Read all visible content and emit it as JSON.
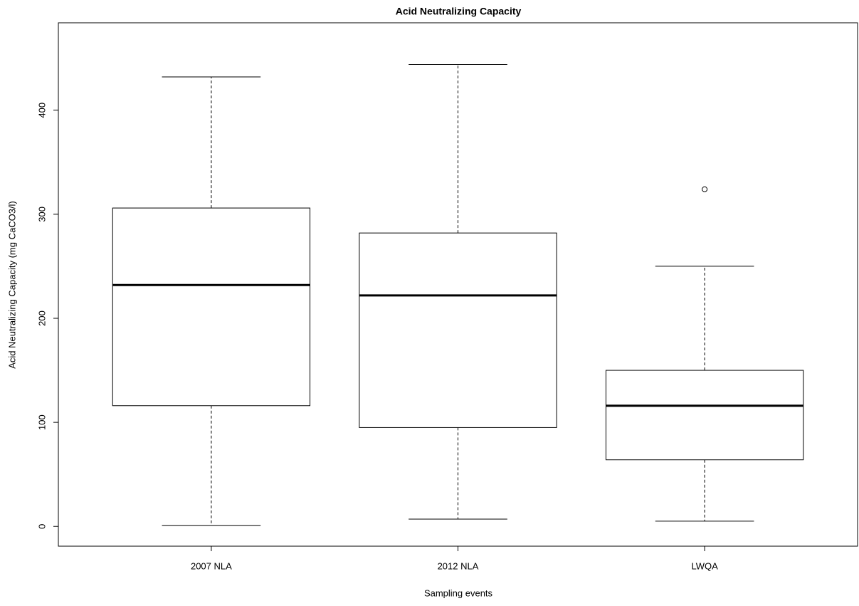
{
  "chart_data": {
    "type": "boxplot",
    "title": "Acid Neutralizing Capacity",
    "x_label": "Sampling events",
    "y_label": "Acid Neutralizing Capacity (mg CaCO3/l)",
    "categories": [
      "2007 NLA",
      "2012 NLA",
      "LWQA"
    ],
    "min": [
      1,
      7,
      5
    ],
    "q1": [
      116,
      95,
      64
    ],
    "median": [
      232,
      222,
      116
    ],
    "q3": [
      306,
      282,
      150
    ],
    "max": [
      432,
      444,
      250
    ],
    "outliers": [
      [],
      [],
      [
        324
      ]
    ],
    "color": "#000000",
    "ylim": [
      -19,
      484
    ],
    "yticks": [
      0,
      100,
      200,
      300,
      400
    ]
  }
}
